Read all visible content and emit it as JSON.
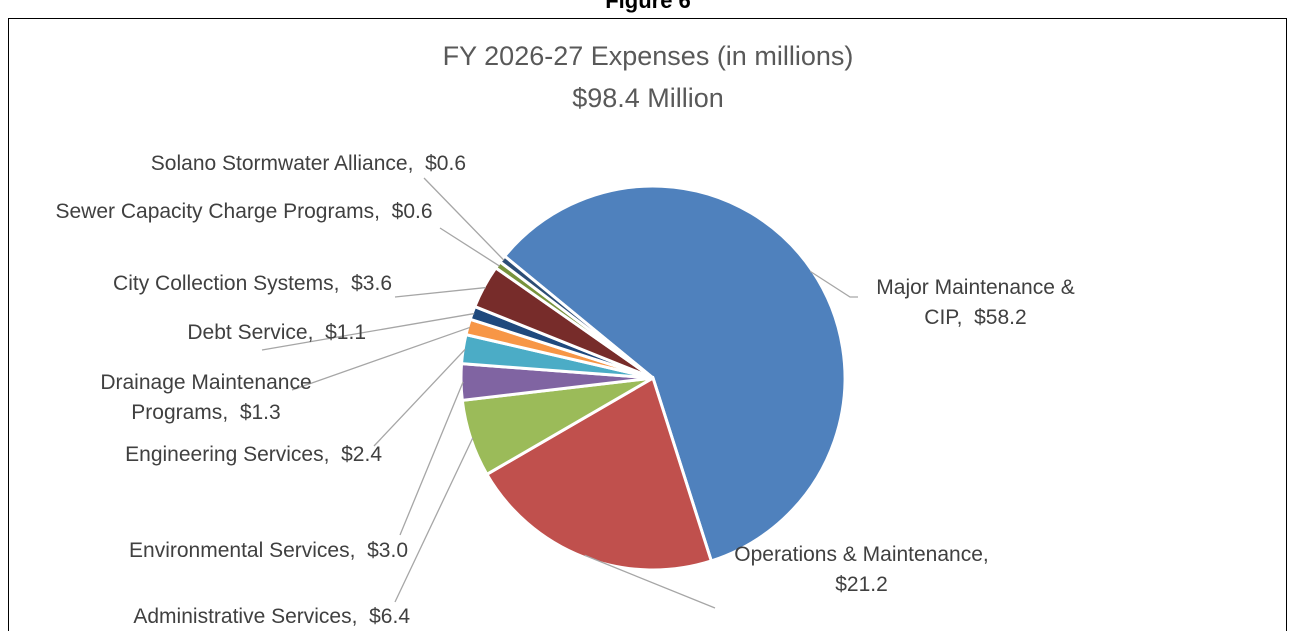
{
  "figure_label": "Figure 6",
  "chart_data": {
    "type": "pie",
    "title": "FY 2026-27 Expenses (in millions)",
    "subtitle": "$98.4 Million",
    "categories": [
      "Major Maintenance & CIP",
      "Operations & Maintenance",
      "Administrative Services",
      "Environmental Services",
      "Engineering Services",
      "Drainage Maintenance Programs",
      "Debt Service",
      "City Collection Systems",
      "Sewer Capacity Charge Programs",
      "Solano Stormwater Alliance"
    ],
    "values": [
      58.2,
      21.2,
      6.4,
      3.0,
      2.4,
      1.3,
      1.1,
      3.6,
      0.6,
      0.6
    ],
    "value_labels": [
      "$58.2",
      "$21.2",
      "$6.4",
      "$3.0",
      "$2.4",
      "$1.3",
      "$1.1",
      "$3.6",
      "$0.6",
      "$0.6"
    ],
    "label_separator": ",  ",
    "colors": [
      "#4f81bd",
      "#c0504d",
      "#9bbb59",
      "#8064a2",
      "#4bacc6",
      "#f79646",
      "#1f497d",
      "#772c2a",
      "#77933c",
      "#2c4d75"
    ]
  }
}
